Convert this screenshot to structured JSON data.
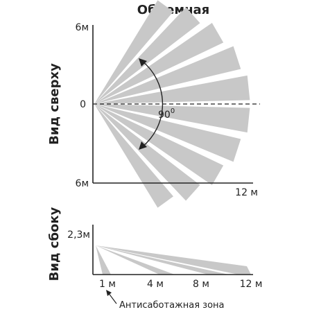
{
  "title": "Объемная",
  "top_view": {
    "label": "Вид сверху",
    "y_top": "6м",
    "y_zero": "0",
    "y_bottom": "6м",
    "x_end": "12 м",
    "angle": "90",
    "angle_deg_symbol": "0",
    "fan_zones": 10
  },
  "side_view": {
    "label": "Вид сбоку",
    "height": "2,3м",
    "ticks": [
      "1 м",
      "4 м",
      "8 м",
      "12 м"
    ],
    "anti_sabotage": "Антисаботажная зона",
    "zones": 4
  },
  "colors": {
    "zone": "#c8c8c8",
    "ink": "#222222"
  }
}
